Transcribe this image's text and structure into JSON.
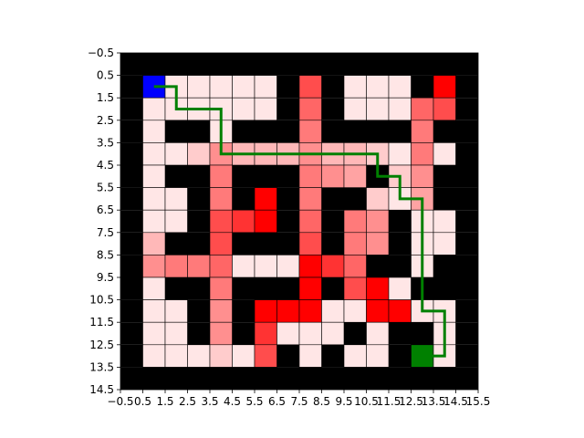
{
  "chart_data": {
    "type": "heatmap",
    "title": "",
    "xlabel": "",
    "ylabel": "",
    "xlim": [
      -0.5,
      15.5
    ],
    "ylim": [
      14.5,
      -0.5
    ],
    "x_ticks": [
      "−0.5",
      "0.5",
      "1.5",
      "2.5",
      "3.5",
      "4.5",
      "5.5",
      "6.5",
      "7.5",
      "8.5",
      "9.5",
      "10.5",
      "11.5",
      "12.5",
      "13.5",
      "14.5",
      "15.5"
    ],
    "y_ticks": [
      "−0.5",
      "0.5",
      "1.5",
      "2.5",
      "3.5",
      "4.5",
      "5.5",
      "6.5",
      "7.5",
      "8.5",
      "9.5",
      "10.5",
      "11.5",
      "12.5",
      "13.5",
      "14.5"
    ],
    "grid_note": "maze grid 16 columns x 15 rows; value 0=wall (black), 1-10=visit intensity (light pink to red), S=start (blue), G=goal (green)",
    "grid": [
      [
        0,
        0,
        0,
        0,
        0,
        0,
        0,
        0,
        0,
        0,
        0,
        0,
        0,
        0,
        0,
        0
      ],
      [
        0,
        "S",
        1,
        1,
        1,
        1,
        1,
        0,
        8,
        0,
        1,
        1,
        1,
        0,
        10,
        0
      ],
      [
        0,
        1,
        1,
        1,
        1,
        1,
        1,
        0,
        7,
        0,
        1,
        1,
        1,
        7,
        8,
        0
      ],
      [
        0,
        1,
        0,
        0,
        1,
        0,
        0,
        0,
        6,
        0,
        0,
        0,
        0,
        6,
        0,
        0
      ],
      [
        0,
        1,
        1,
        2,
        5,
        3,
        3,
        3,
        5,
        3,
        3,
        2,
        1,
        6,
        1,
        0
      ],
      [
        0,
        1,
        0,
        0,
        6,
        0,
        0,
        0,
        6,
        5,
        4,
        0,
        2,
        5,
        0,
        0
      ],
      [
        0,
        1,
        1,
        0,
        6,
        0,
        10,
        0,
        6,
        0,
        0,
        2,
        1,
        4,
        0,
        0
      ],
      [
        0,
        1,
        1,
        0,
        8,
        9,
        10,
        0,
        7,
        0,
        6,
        5,
        0,
        1,
        1,
        0
      ],
      [
        0,
        3,
        0,
        0,
        8,
        0,
        0,
        0,
        8,
        0,
        6,
        5,
        0,
        1,
        1,
        0
      ],
      [
        0,
        5,
        6,
        6,
        7,
        1,
        1,
        1,
        10,
        9,
        7,
        0,
        0,
        1,
        0,
        0
      ],
      [
        0,
        1,
        0,
        0,
        6,
        0,
        0,
        0,
        10,
        0,
        8,
        10,
        1,
        0,
        0,
        0
      ],
      [
        0,
        1,
        1,
        0,
        5,
        0,
        10,
        10,
        10,
        1,
        1,
        10,
        10,
        1,
        1,
        0
      ],
      [
        0,
        1,
        1,
        0,
        5,
        0,
        9,
        1,
        1,
        1,
        0,
        1,
        0,
        0,
        1,
        0
      ],
      [
        0,
        1,
        1,
        1,
        2,
        1,
        8,
        0,
        1,
        0,
        1,
        1,
        0,
        "G",
        1,
        0
      ],
      [
        0,
        0,
        0,
        0,
        0,
        0,
        0,
        0,
        0,
        0,
        0,
        0,
        0,
        0,
        0,
        0
      ]
    ],
    "path": [
      [
        1,
        1
      ],
      [
        2,
        1
      ],
      [
        2,
        2
      ],
      [
        3,
        2
      ],
      [
        4,
        2
      ],
      [
        4,
        3
      ],
      [
        4,
        4
      ],
      [
        5,
        4
      ],
      [
        6,
        4
      ],
      [
        7,
        4
      ],
      [
        8,
        4
      ],
      [
        9,
        4
      ],
      [
        10,
        4
      ],
      [
        11,
        4
      ],
      [
        11,
        5
      ],
      [
        12,
        5
      ],
      [
        12,
        6
      ],
      [
        13,
        6
      ],
      [
        13,
        7
      ],
      [
        13,
        8
      ],
      [
        13,
        9
      ],
      [
        13,
        10
      ],
      [
        13,
        11
      ],
      [
        14,
        11
      ],
      [
        14,
        12
      ],
      [
        14,
        13
      ],
      [
        13,
        13
      ]
    ],
    "colors": {
      "wall": "#000000",
      "start": "#0000ff",
      "goal": "#008000",
      "path": "#008000",
      "scale": {
        "1": "#ffe6e6",
        "2": "#ffcccc",
        "3": "#ffb8b8",
        "4": "#ffa3a3",
        "5": "#ff8f8f",
        "6": "#ff7a7a",
        "7": "#ff6666",
        "8": "#ff4d4d",
        "9": "#ff3333",
        "10": "#ff0000"
      }
    }
  }
}
